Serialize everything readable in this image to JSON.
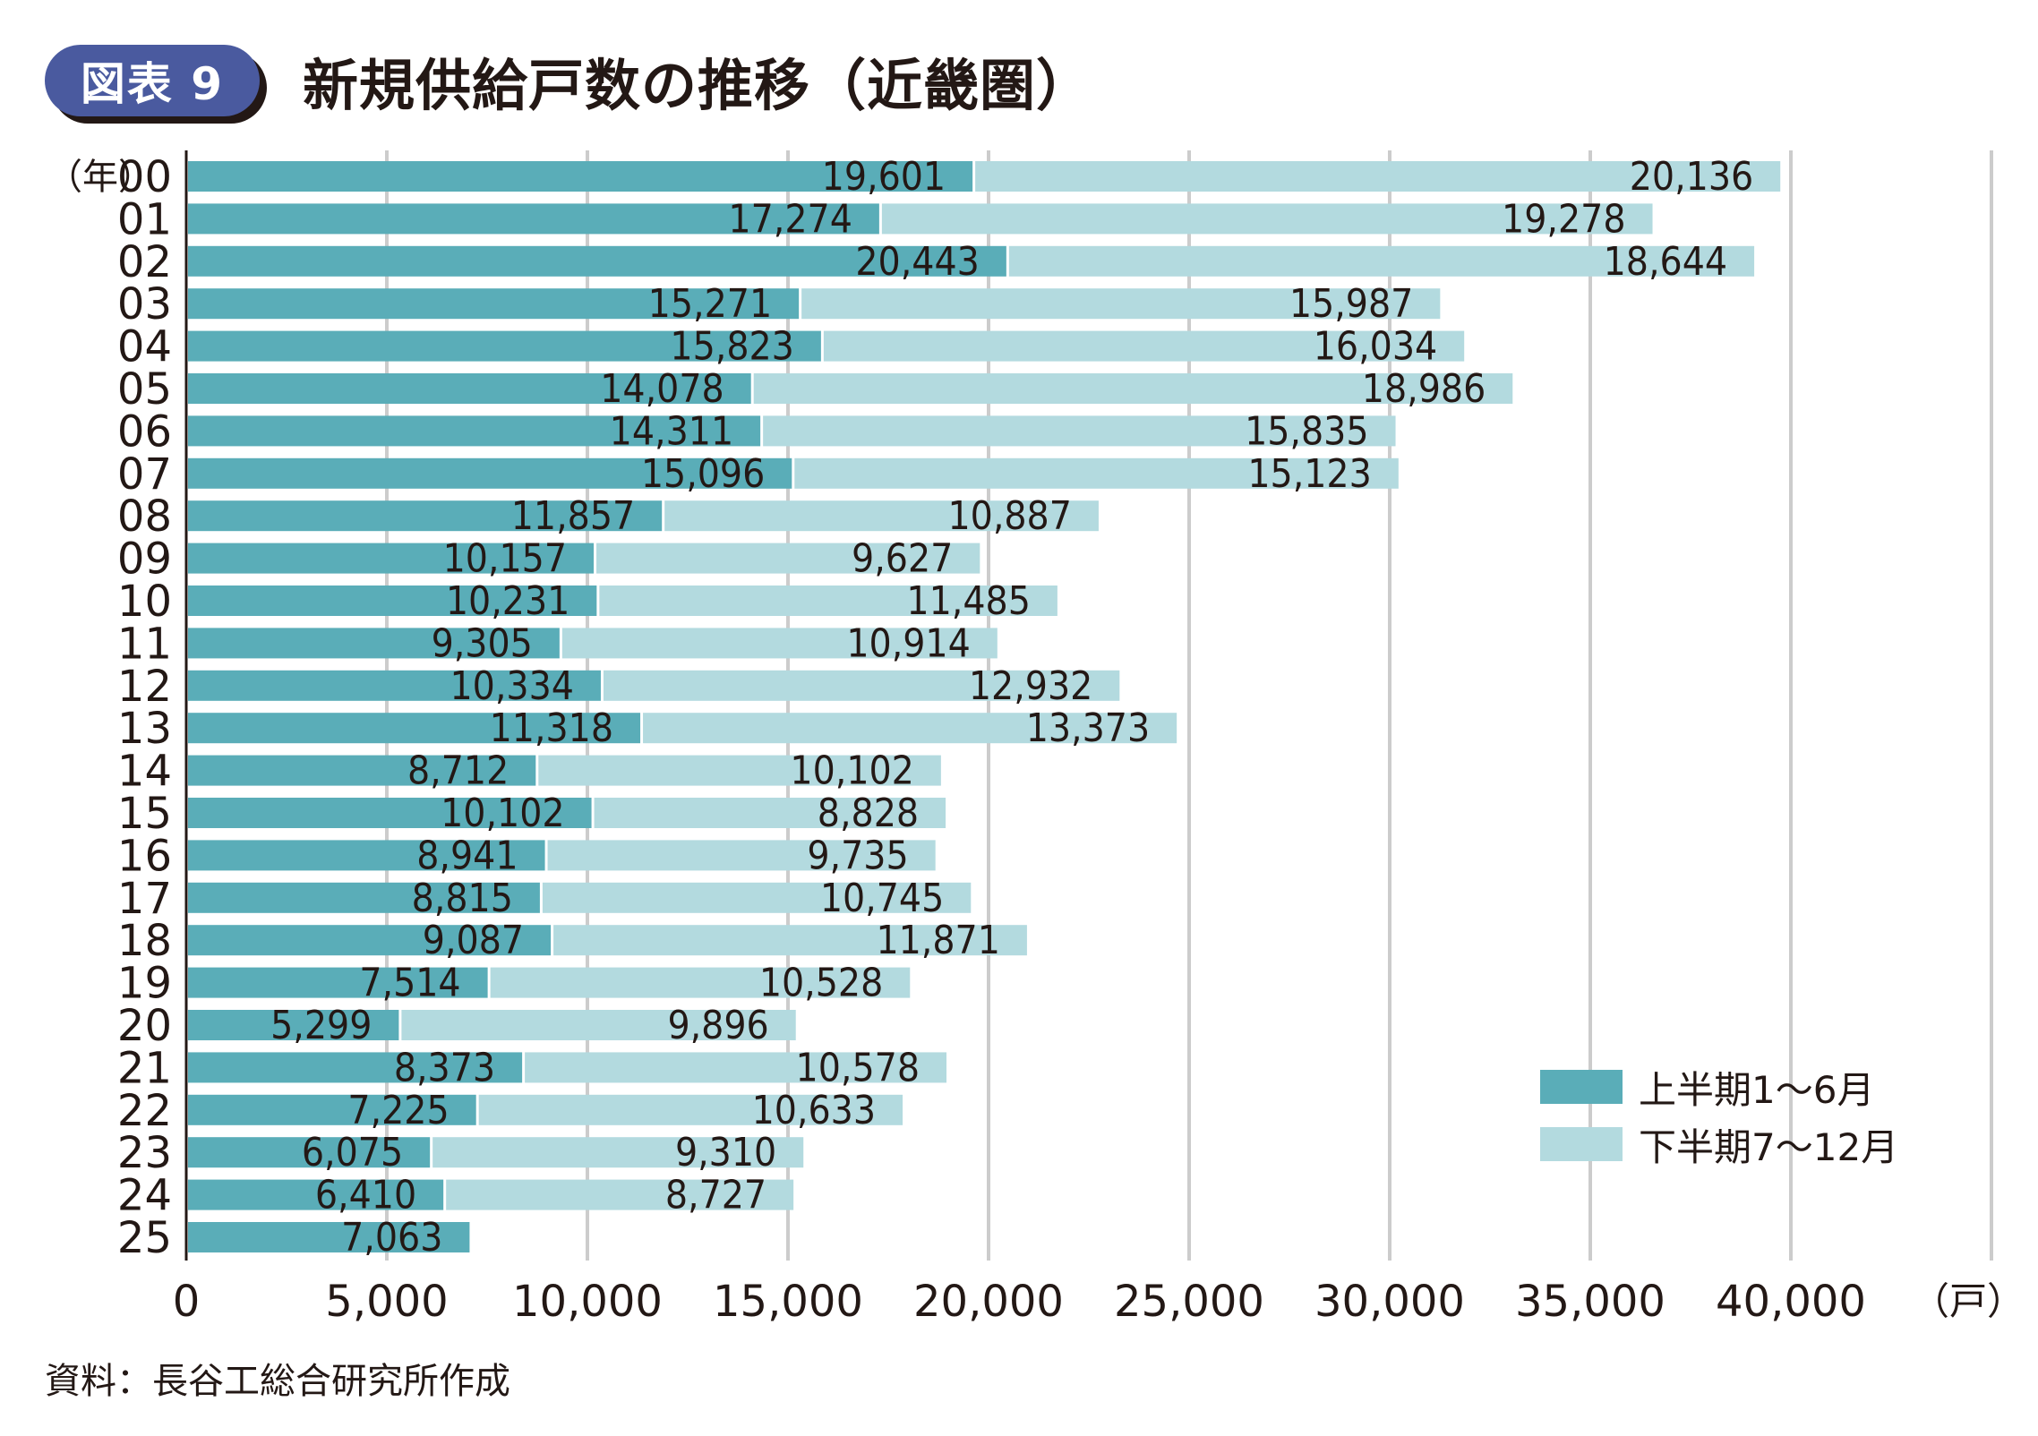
{
  "header": {
    "badge": "図表 9",
    "title": "新規供給戸数の推移（近畿圏）"
  },
  "source_note": "資料：長谷工総合研究所作成",
  "colors": {
    "first_half": "#5aadb8",
    "second_half": "#b3dadf",
    "badge": "#4a5a9f",
    "grid": "#cccccc",
    "text": "#231815"
  },
  "chart_data": {
    "type": "bar",
    "orientation": "horizontal",
    "stacked": true,
    "title": "新規供給戸数の推移（近畿圏）",
    "ylabel": "（年）",
    "xlabel": "（戸）",
    "xlim": [
      0,
      45000
    ],
    "xticks": [
      0,
      5000,
      10000,
      15000,
      20000,
      25000,
      30000,
      35000,
      40000
    ],
    "xtick_labels": [
      "0",
      "5,000",
      "10,000",
      "15,000",
      "20,000",
      "25,000",
      "30,000",
      "35,000",
      "40,000"
    ],
    "grid": true,
    "legend_position": "bottom-right",
    "categories": [
      "00",
      "01",
      "02",
      "03",
      "04",
      "05",
      "06",
      "07",
      "08",
      "09",
      "10",
      "11",
      "12",
      "13",
      "14",
      "15",
      "16",
      "17",
      "18",
      "19",
      "20",
      "21",
      "22",
      "23",
      "24",
      "25"
    ],
    "series": [
      {
        "name": "上半期1～6月",
        "color": "#5aadb8",
        "values": [
          19601,
          17274,
          20443,
          15271,
          15823,
          14078,
          14311,
          15096,
          11857,
          10157,
          10231,
          9305,
          10334,
          11318,
          8712,
          10102,
          8941,
          8815,
          9087,
          7514,
          5299,
          8373,
          7225,
          6075,
          6410,
          7063
        ],
        "labels": [
          "19,601",
          "17,274",
          "20,443",
          "15,271",
          "15,823",
          "14,078",
          "14,311",
          "15,096",
          "11,857",
          "10,157",
          "10,231",
          "9,305",
          "10,334",
          "11,318",
          "8,712",
          "10,102",
          "8,941",
          "8,815",
          "9,087",
          "7,514",
          "5,299",
          "8,373",
          "7,225",
          "6,075",
          "6,410",
          "7,063"
        ]
      },
      {
        "name": "下半期7～12月",
        "color": "#b3dadf",
        "values": [
          20136,
          19278,
          18644,
          15987,
          16034,
          18986,
          15835,
          15123,
          10887,
          9627,
          11485,
          10914,
          12932,
          13373,
          10102,
          8828,
          9735,
          10745,
          11871,
          10528,
          9896,
          10578,
          10633,
          9310,
          8727,
          null
        ],
        "labels": [
          "20,136",
          "19,278",
          "18,644",
          "15,987",
          "16,034",
          "18,986",
          "15,835",
          "15,123",
          "10,887",
          "9,627",
          "11,485",
          "10,914",
          "12,932",
          "13,373",
          "10,102",
          "8,828",
          "9,735",
          "10,745",
          "11,871",
          "10,528",
          "9,896",
          "10,578",
          "10,633",
          "9,310",
          "8,727",
          null
        ]
      }
    ]
  }
}
